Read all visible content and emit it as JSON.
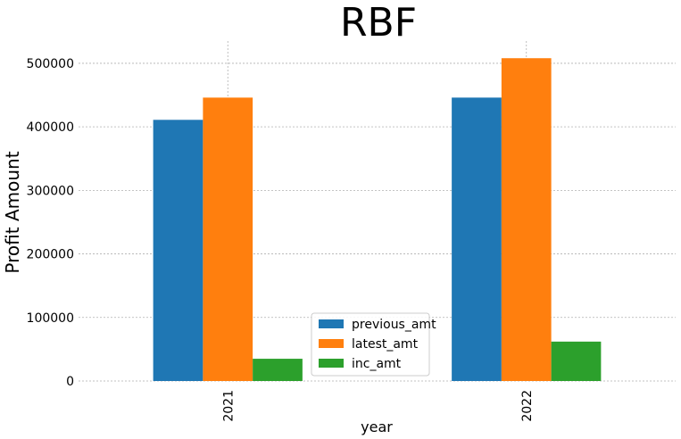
{
  "chart_data": {
    "type": "bar",
    "title": "RBF",
    "xlabel": "year",
    "ylabel": "Profit Amount",
    "categories": [
      "2021",
      "2022"
    ],
    "series": [
      {
        "name": "previous_amt",
        "values": [
          411000,
          446000
        ],
        "color": "#1f77b4"
      },
      {
        "name": "latest_amt",
        "values": [
          446000,
          508000
        ],
        "color": "#ff7f0e"
      },
      {
        "name": "inc_amt",
        "values": [
          35000,
          62000
        ],
        "color": "#2ca02c"
      }
    ],
    "ylim": [
      0,
      535000
    ],
    "yticks": [
      0,
      100000,
      200000,
      300000,
      400000,
      500000
    ],
    "grid": true,
    "legend_position": "lower center"
  }
}
